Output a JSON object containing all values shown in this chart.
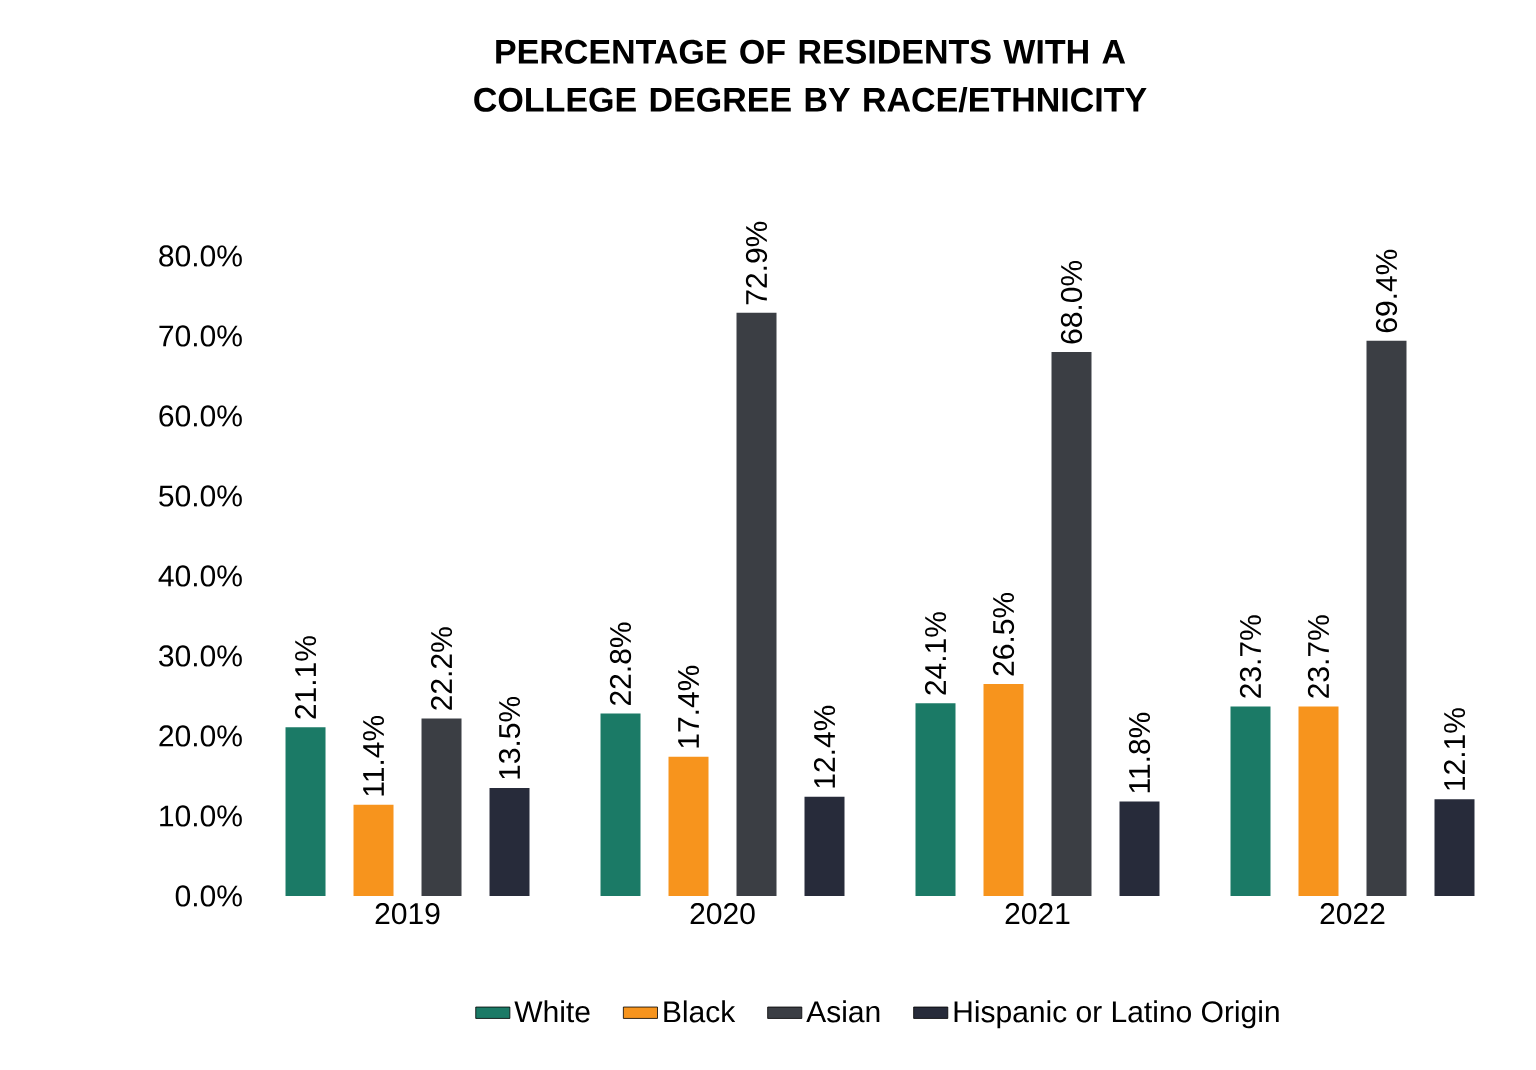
{
  "chart_data": {
    "type": "bar",
    "title": "PERCENTAGE OF RESIDENTS WITH A COLLEGE DEGREE BY RACE/ETHNICITY",
    "categories": [
      "2019",
      "2020",
      "2021",
      "2022"
    ],
    "series": [
      {
        "name": "White",
        "color": "#1b7a66",
        "values": [
          21.1,
          22.8,
          24.1,
          23.7
        ],
        "value_labels": [
          "21.1%",
          "22.8%",
          "24.1%",
          "23.7%"
        ]
      },
      {
        "name": "Black",
        "color": "#f7941d",
        "values": [
          11.4,
          17.4,
          26.5,
          23.7
        ],
        "value_labels": [
          "11.4%",
          "17.4%",
          "26.5%",
          "23.7%"
        ]
      },
      {
        "name": "Asian",
        "color": "#3b3e44",
        "values": [
          22.2,
          72.9,
          68.0,
          69.4
        ],
        "value_labels": [
          "22.2%",
          "72.9%",
          "68.0%",
          "69.4%"
        ]
      },
      {
        "name": "Hispanic or Latino Origin",
        "color": "#272b3a",
        "values": [
          13.5,
          12.4,
          11.8,
          12.1
        ],
        "value_labels": [
          "13.5%",
          "12.4%",
          "11.8%",
          "12.1%"
        ]
      }
    ],
    "ylim": [
      0,
      80
    ],
    "yticks": [
      {
        "value": 0,
        "label": "0.0%"
      },
      {
        "value": 10,
        "label": "10.0%"
      },
      {
        "value": 20,
        "label": "20.0%"
      },
      {
        "value": 30,
        "label": "30.0%"
      },
      {
        "value": 40,
        "label": "40.0%"
      },
      {
        "value": 50,
        "label": "50.0%"
      },
      {
        "value": 60,
        "label": "60.0%"
      },
      {
        "value": 70,
        "label": "70.0%"
      },
      {
        "value": 80,
        "label": "80.0%"
      }
    ],
    "legend": "bottom",
    "grid": false
  }
}
